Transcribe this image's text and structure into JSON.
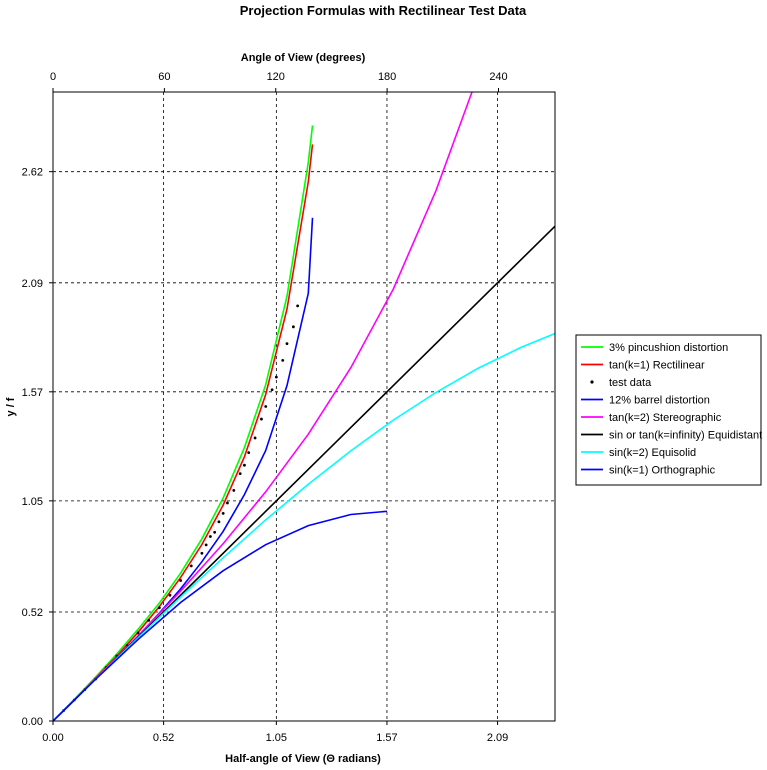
{
  "chart_data": {
    "type": "line",
    "title": "Projection Formulas with Rectilinear Test Data",
    "xlabel": "Half-angle of View (Θ radians)",
    "ylabel": "y / f",
    "x2label": "Angle of View (degrees)",
    "xlim": [
      0,
      2.36
    ],
    "ylim": [
      0,
      3.0
    ],
    "x_ticks": [
      "0.00",
      "0.52",
      "1.05",
      "1.57",
      "2.09"
    ],
    "x_tick_values": [
      0,
      0.52,
      1.05,
      1.57,
      2.09
    ],
    "y_ticks": [
      "0.00",
      "0.52",
      "1.05",
      "1.57",
      "2.09",
      "2.62"
    ],
    "y_tick_values": [
      0,
      0.52,
      1.05,
      1.57,
      2.09,
      2.62
    ],
    "x2_ticks": [
      "0",
      "60",
      "120",
      "180",
      "240"
    ],
    "x2_tick_values": [
      0,
      60,
      120,
      180,
      240
    ],
    "grid": true,
    "legend_position": "right",
    "series": [
      {
        "name": "3% pincushion distortion",
        "color": "#00ff00",
        "kind": "line",
        "x": [
          0,
          0.1,
          0.2,
          0.3,
          0.4,
          0.5,
          0.6,
          0.7,
          0.8,
          0.9,
          1.0,
          1.1,
          1.2,
          1.22
        ],
        "y": [
          0,
          0.103,
          0.209,
          0.32,
          0.438,
          0.563,
          0.705,
          0.869,
          1.064,
          1.304,
          1.604,
          2.026,
          2.664,
          2.84
        ]
      },
      {
        "name": "tan(k=1) Rectilinear",
        "color": "#ff0000",
        "kind": "line",
        "x": [
          0,
          0.1,
          0.2,
          0.3,
          0.4,
          0.5,
          0.6,
          0.7,
          0.8,
          0.9,
          1.0,
          1.1,
          1.2,
          1.22
        ],
        "y": [
          0,
          0.1,
          0.203,
          0.309,
          0.423,
          0.546,
          0.684,
          0.842,
          1.03,
          1.26,
          1.557,
          1.965,
          2.572,
          2.75
        ]
      },
      {
        "name": "test data",
        "color": "#000000",
        "kind": "points",
        "x": [
          0.05,
          0.1,
          0.15,
          0.2,
          0.25,
          0.3,
          0.35,
          0.4,
          0.45,
          0.5,
          0.55,
          0.6,
          0.65,
          0.7,
          0.72,
          0.74,
          0.76,
          0.78,
          0.8,
          0.82,
          0.85,
          0.88,
          0.9,
          0.92,
          0.95,
          0.98,
          1.0,
          1.03,
          1.05,
          1.08,
          1.1,
          1.13,
          1.15
        ],
        "y": [
          0.05,
          0.1,
          0.15,
          0.2,
          0.255,
          0.31,
          0.36,
          0.42,
          0.48,
          0.54,
          0.6,
          0.67,
          0.74,
          0.8,
          0.84,
          0.88,
          0.9,
          0.95,
          0.99,
          1.04,
          1.1,
          1.18,
          1.22,
          1.28,
          1.35,
          1.44,
          1.5,
          1.58,
          1.64,
          1.72,
          1.8,
          1.88,
          1.98
        ]
      },
      {
        "name": "12% barrel distortion",
        "color": "#0000ff",
        "kind": "line",
        "x": [
          0,
          0.1,
          0.2,
          0.3,
          0.4,
          0.5,
          0.6,
          0.7,
          0.8,
          0.9,
          1.0,
          1.1,
          1.2,
          1.22
        ],
        "y": [
          0,
          0.1,
          0.2,
          0.3,
          0.405,
          0.515,
          0.63,
          0.76,
          0.905,
          1.08,
          1.29,
          1.6,
          2.04,
          2.4
        ]
      },
      {
        "name": "tan(k=2) Stereographic",
        "color": "#ff00ff",
        "kind": "line",
        "x": [
          0,
          0.2,
          0.4,
          0.6,
          0.8,
          1.0,
          1.2,
          1.4,
          1.6,
          1.8,
          1.97
        ],
        "y": [
          0,
          0.201,
          0.405,
          0.619,
          0.846,
          1.093,
          1.368,
          1.685,
          2.06,
          2.529,
          3.0
        ]
      },
      {
        "name": "sin or tan(k=infinity) Equidistant",
        "color": "#000000",
        "kind": "line",
        "x": [
          0,
          2.36
        ],
        "y": [
          0,
          2.36
        ]
      },
      {
        "name": "sin(k=2) Equisolid",
        "color": "#00ffff",
        "kind": "line",
        "x": [
          0,
          0.2,
          0.4,
          0.6,
          0.8,
          1.0,
          1.2,
          1.4,
          1.6,
          1.8,
          2.0,
          2.2,
          2.36
        ],
        "y": [
          0,
          0.2,
          0.397,
          0.591,
          0.779,
          0.959,
          1.129,
          1.288,
          1.435,
          1.567,
          1.683,
          1.782,
          1.848
        ]
      },
      {
        "name": "sin(k=1) Orthographic",
        "color": "#0000ff",
        "kind": "line",
        "x": [
          0,
          0.2,
          0.4,
          0.6,
          0.8,
          1.0,
          1.2,
          1.4,
          1.57
        ],
        "y": [
          0,
          0.199,
          0.389,
          0.565,
          0.717,
          0.841,
          0.932,
          0.985,
          1.0
        ]
      }
    ]
  }
}
